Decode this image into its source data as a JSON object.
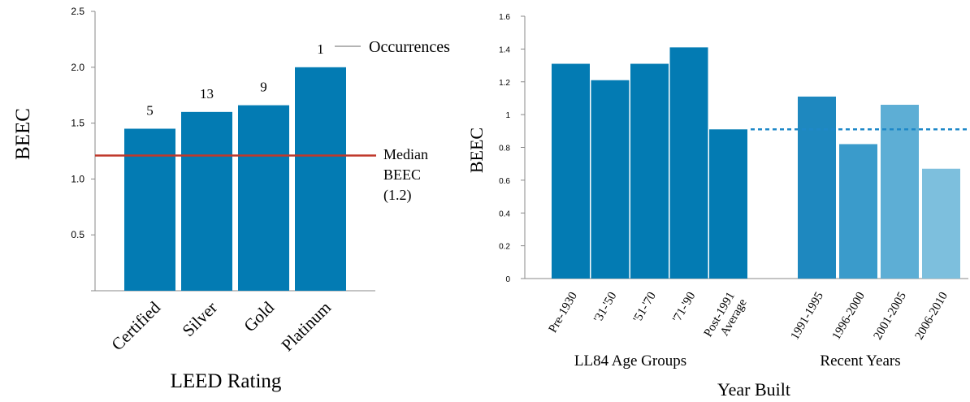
{
  "colors": {
    "bar": "#037BB3",
    "median_line": "#C0392B",
    "axis": "#888888",
    "average_line": "#1E88C8",
    "recent_bars": [
      "#1E88BF",
      "#3A9BCB",
      "#5DAED5",
      "#7DBFDD"
    ]
  },
  "chart_data": [
    {
      "type": "bar",
      "categories": [
        "Certified",
        "Silver",
        "Gold",
        "Platinum"
      ],
      "values": [
        1.45,
        1.6,
        1.66,
        2.0
      ],
      "occurrences": [
        "5",
        "13",
        "9",
        "1"
      ],
      "ylabel": "BEEC",
      "xlabel": "LEED Rating",
      "ylim": [
        0,
        2.5
      ],
      "yticks": [
        "0.5",
        "1.0",
        "1.5",
        "2.0",
        "2.5"
      ],
      "median_value": 1.21,
      "median_label": [
        "Median",
        "BEEC",
        "(1.2)"
      ],
      "occurrences_label": "Occurrences",
      "grid": false
    },
    {
      "type": "bar",
      "ylabel": "BEEC",
      "xlabel": "Year Built",
      "ylim": [
        0,
        1.6
      ],
      "yticks": [
        "0",
        "0.2",
        "0.4",
        "0.6",
        "0.8",
        "1",
        "1.2",
        "1.4",
        "1.6"
      ],
      "groups": [
        {
          "name": "LL84 Age Groups",
          "categories": [
            "Pre-1930",
            "'31-'50",
            "'51-'70",
            "'71-'90",
            "Post-1991 Average"
          ],
          "category_lines": [
            [
              "Pre-1930"
            ],
            [
              "'31-'50"
            ],
            [
              "'51-'70"
            ],
            [
              "'71-'90"
            ],
            [
              "Post-1991",
              "Average"
            ]
          ],
          "values": [
            1.31,
            1.21,
            1.31,
            1.41,
            0.91
          ]
        },
        {
          "name": "Recent Years",
          "categories": [
            "1991-1995",
            "1996-2000",
            "2001-2005",
            "2006-2010"
          ],
          "category_lines": [
            [
              "1991-1995"
            ],
            [
              "1996-2000"
            ],
            [
              "2001-2005"
            ],
            [
              "2006-2010"
            ]
          ],
          "values": [
            1.11,
            0.82,
            1.06,
            0.67
          ]
        }
      ],
      "average_line_value": 0.91,
      "grid": false
    }
  ]
}
